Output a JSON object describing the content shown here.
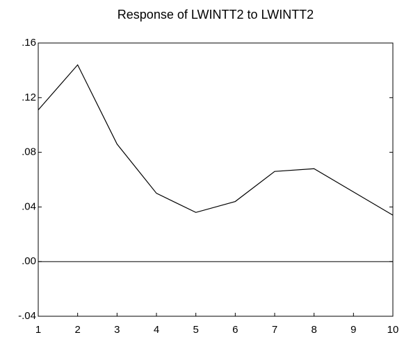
{
  "chart_data": {
    "type": "line",
    "title": "Response of LWINTT2 to LWINTT2",
    "x": [
      1,
      2,
      3,
      4,
      5,
      6,
      7,
      8,
      9,
      10
    ],
    "series": [
      {
        "name": "LWINTT2",
        "color": "#000000",
        "values": [
          0.111,
          0.144,
          0.086,
          0.05,
          0.036,
          0.044,
          0.066,
          0.068,
          0.051,
          0.034
        ]
      }
    ],
    "xlim": [
      1,
      10
    ],
    "xticks": [
      1,
      2,
      3,
      4,
      5,
      6,
      7,
      8,
      9,
      10
    ],
    "ylim": [
      -0.04,
      0.16
    ],
    "yticks": [
      {
        "value": -0.04,
        "label": "-.04"
      },
      {
        "value": 0,
        "label": ".00"
      },
      {
        "value": 0.04,
        "label": ".04"
      },
      {
        "value": 0.08,
        "label": ".08"
      },
      {
        "value": 0.12,
        "label": ".12"
      },
      {
        "value": 0.16,
        "label": ".16"
      }
    ],
    "zero_line": true
  }
}
